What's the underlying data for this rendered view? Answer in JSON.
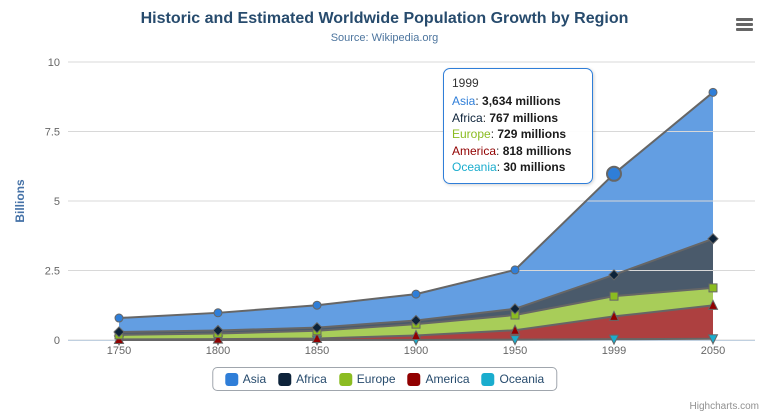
{
  "header": {
    "title": "Historic and Estimated Worldwide Population Growth by Region",
    "subtitle": "Source: Wikipedia.org",
    "export_menu_icon": "hamburger"
  },
  "colors": {
    "title": "#274b6d",
    "subtitle": "#4d759e",
    "axis_labels": "#666666",
    "yaxis_title": "#4572A7",
    "gridline": "#d8d8d8",
    "axis_line": "#c0d0e0",
    "series_line": "#666666",
    "legend_text": "#274b6d",
    "credits": "#909090",
    "tooltip_border": "#2f7ed8"
  },
  "chart_data": {
    "type": "area",
    "stacking": "normal",
    "title": "Historic and Estimated Worldwide Population Growth by Region",
    "subtitle": "Source: Wikipedia.org",
    "xlabel": "",
    "ylabel": "Billions",
    "unit": "millions",
    "grid": true,
    "legend_position": "bottom",
    "categories": [
      "1750",
      "1800",
      "1850",
      "1900",
      "1950",
      "1999",
      "2050"
    ],
    "ylim": [
      0,
      10
    ],
    "yticks": [
      0,
      2.5,
      5,
      7.5,
      10
    ],
    "ytick_labels": [
      "0",
      "2.5",
      "5",
      "7.5",
      "10"
    ],
    "fill_opacity": 0.75,
    "series": [
      {
        "name": "Asia",
        "color": "#2f7ed8",
        "marker": "circle",
        "values_millions": [
          502,
          635,
          809,
          947,
          1402,
          3634,
          5268
        ]
      },
      {
        "name": "Africa",
        "color": "#0d233a",
        "marker": "diamond",
        "values_millions": [
          106,
          107,
          111,
          133,
          221,
          767,
          1766
        ]
      },
      {
        "name": "Europe",
        "color": "#8bbc21",
        "marker": "square",
        "values_millions": [
          163,
          203,
          276,
          408,
          547,
          729,
          628
        ]
      },
      {
        "name": "America",
        "color": "#910000",
        "marker": "triangle",
        "values_millions": [
          18,
          31,
          54,
          156,
          339,
          818,
          1201
        ]
      },
      {
        "name": "Oceania",
        "color": "#1aadce",
        "marker": "triangle-down",
        "values_millions": [
          2,
          2,
          2,
          6,
          13,
          30,
          46
        ]
      }
    ],
    "hover": {
      "series_index": 0,
      "point_index": 5
    }
  },
  "tooltip": {
    "header": "1999",
    "rows": [
      {
        "label": "Asia",
        "color": "#2f7ed8",
        "value": "3,634 millions"
      },
      {
        "label": "Africa",
        "color": "#0d233a",
        "value": "767 millions"
      },
      {
        "label": "Europe",
        "color": "#8bbc21",
        "value": "729 millions"
      },
      {
        "label": "America",
        "color": "#910000",
        "value": "818 millions"
      },
      {
        "label": "Oceania",
        "color": "#1aadce",
        "value": "30 millions"
      }
    ]
  },
  "legend": {
    "items": [
      {
        "label": "Asia",
        "color": "#2f7ed8"
      },
      {
        "label": "Africa",
        "color": "#0d233a"
      },
      {
        "label": "Europe",
        "color": "#8bbc21"
      },
      {
        "label": "America",
        "color": "#910000"
      },
      {
        "label": "Oceania",
        "color": "#1aadce"
      }
    ]
  },
  "credits": "Highcharts.com"
}
